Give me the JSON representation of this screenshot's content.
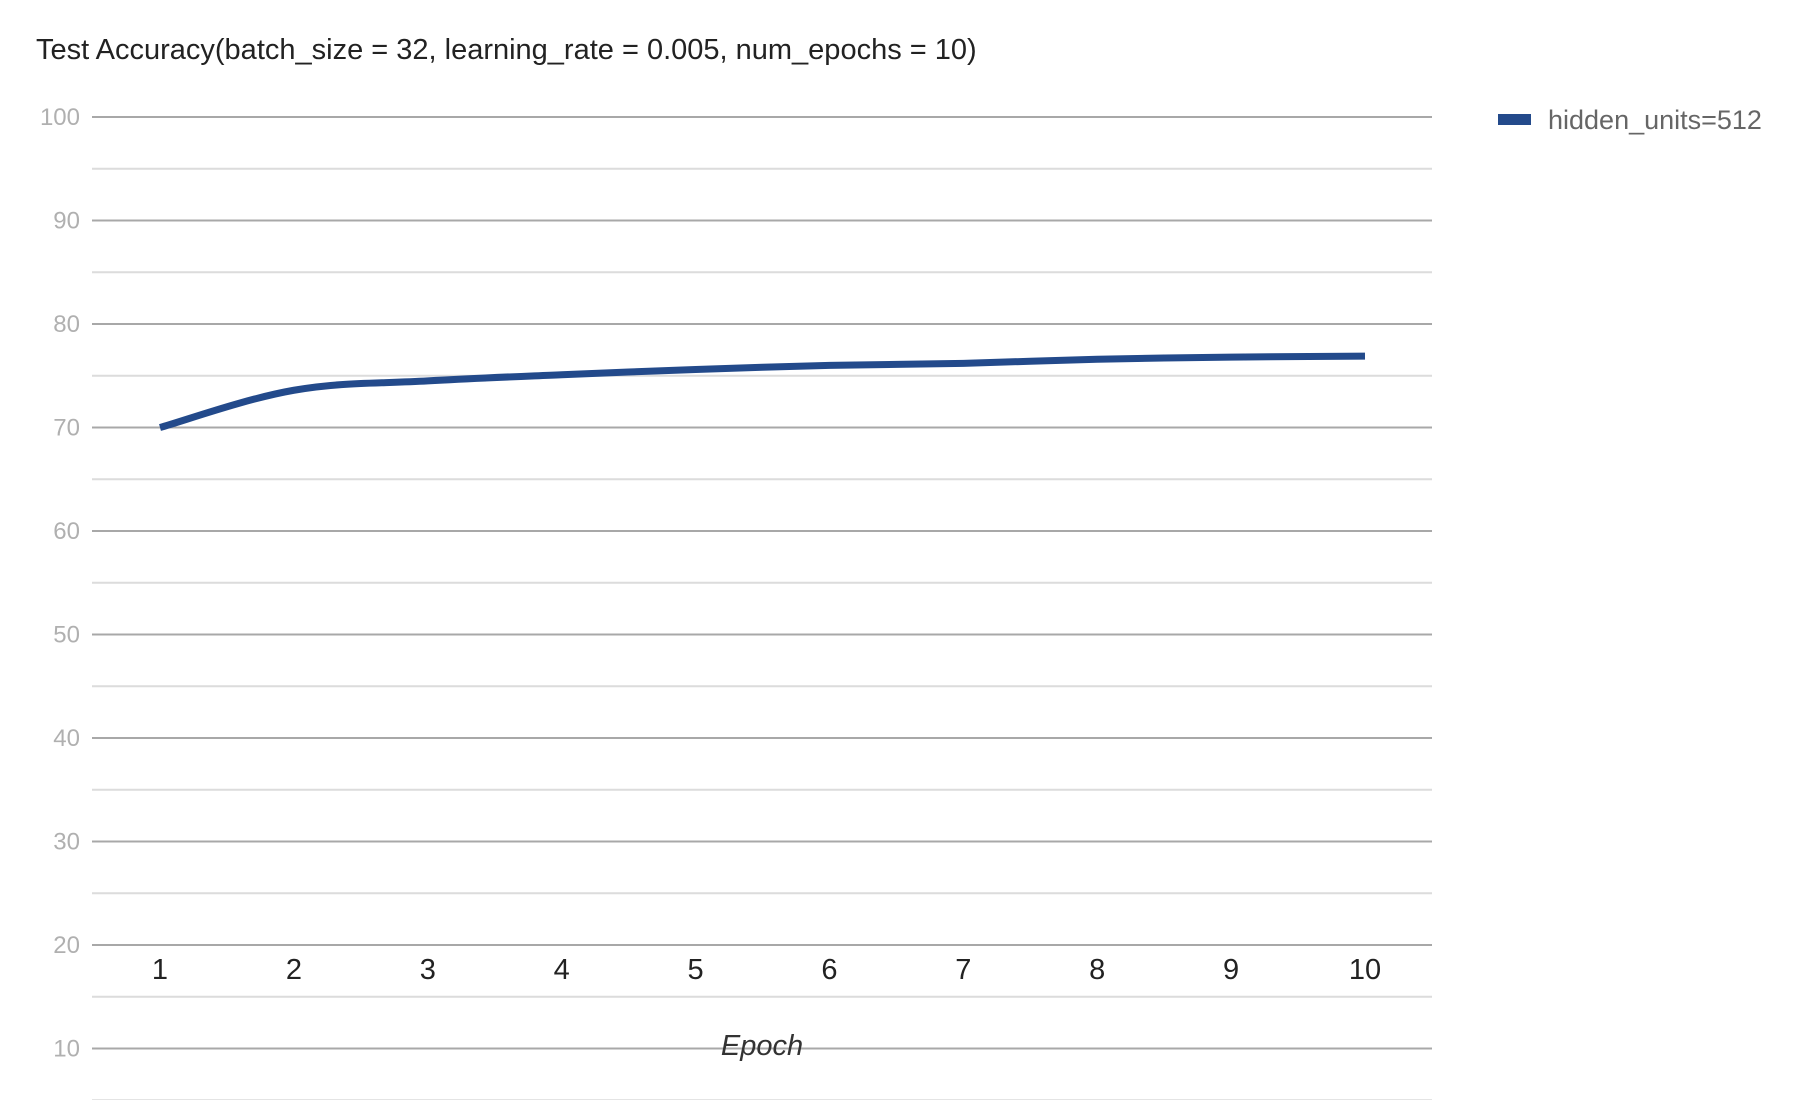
{
  "chart_data": {
    "type": "line",
    "title": "Test Accuracy(batch_size = 32, learning_rate = 0.005, num_epochs = 10)",
    "xlabel": "Epoch",
    "ylabel": "",
    "x": [
      1,
      2,
      3,
      4,
      5,
      6,
      7,
      8,
      9,
      10
    ],
    "x_tick_labels": [
      "1",
      "2",
      "3",
      "4",
      "5",
      "6",
      "7",
      "8",
      "9",
      "10"
    ],
    "ylim": [
      0,
      100
    ],
    "y_tick_labels": [
      "10",
      "20",
      "30",
      "40",
      "50",
      "60",
      "70",
      "80",
      "90",
      "100"
    ],
    "y_tick_values": [
      10,
      20,
      30,
      40,
      50,
      60,
      70,
      80,
      90,
      100
    ],
    "grid": true,
    "legend_position": "top-right",
    "series": [
      {
        "name": "hidden_units=512",
        "color": "#234a8b",
        "values": [
          70.0,
          73.6,
          74.5,
          75.1,
          75.6,
          76.0,
          76.2,
          76.6,
          76.8,
          76.9
        ]
      }
    ]
  }
}
